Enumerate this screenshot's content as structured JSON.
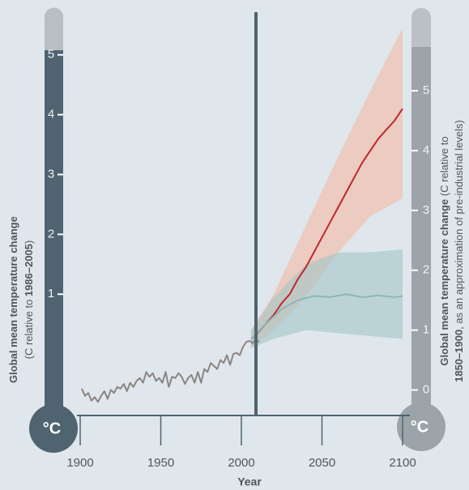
{
  "chart_data": {
    "type": "line",
    "xlabel": "Year",
    "bulb_label_left": "°C",
    "bulb_label_right": "°C",
    "y2label": {
      "bold": "Global mean temperature change",
      "pre": "(C relative to ",
      "period": "1986–2005",
      "post": ")"
    },
    "ylabel": {
      "bold": "Global mean temperature change",
      "rest": " (C relative to",
      "period": "1850–1900",
      "post": ", as an approximation of pre-industrial levels)"
    },
    "xlim": [
      1900,
      2100
    ],
    "xticks": [
      1900,
      1950,
      2000,
      2050,
      2100
    ],
    "ylim": [
      -0.4,
      6.3
    ],
    "yticks": [
      0,
      1,
      2,
      3,
      4,
      5
    ],
    "y2lim": [
      -1.0,
      5.7
    ],
    "y2ticks": [
      1,
      2,
      3,
      4,
      5
    ],
    "bands": [
      {
        "color": "#f5b9a1",
        "x": [
          2006,
          2020,
          2040,
          2060,
          2080,
          2100
        ],
        "upper": [
          1.0,
          1.6,
          2.75,
          3.9,
          5.0,
          6.05
        ],
        "lower": [
          0.7,
          1.0,
          1.55,
          2.3,
          2.9,
          3.2
        ]
      },
      {
        "color": "#a3c6c6",
        "x": [
          2006,
          2020,
          2040,
          2060,
          2080,
          2100
        ],
        "upper": [
          1.0,
          1.55,
          2.1,
          2.3,
          2.3,
          2.35
        ],
        "lower": [
          0.7,
          0.85,
          1.0,
          0.95,
          0.9,
          0.85
        ]
      }
    ],
    "series": [
      {
        "color": "#8a8580",
        "x": [
          1901,
          1903,
          1905,
          1907,
          1909,
          1911,
          1913,
          1915,
          1917,
          1919,
          1921,
          1923,
          1925,
          1927,
          1929,
          1931,
          1933,
          1935,
          1937,
          1939,
          1941,
          1943,
          1945,
          1947,
          1949,
          1951,
          1953,
          1955,
          1957,
          1959,
          1961,
          1963,
          1965,
          1967,
          1969,
          1971,
          1973,
          1975,
          1977,
          1979,
          1981,
          1983,
          1985,
          1987,
          1989,
          1991,
          1993,
          1995,
          1997,
          1999,
          2001,
          2003,
          2005,
          2007,
          2009,
          2011
        ],
        "values": [
          0.02,
          -0.1,
          -0.05,
          -0.18,
          -0.12,
          -0.2,
          -0.1,
          -0.02,
          -0.15,
          0.0,
          -0.05,
          0.05,
          0.02,
          0.1,
          -0.02,
          0.12,
          0.05,
          0.15,
          0.2,
          0.12,
          0.3,
          0.22,
          0.28,
          0.15,
          0.2,
          0.12,
          0.3,
          0.05,
          0.22,
          0.2,
          0.28,
          0.22,
          0.1,
          0.2,
          0.25,
          0.12,
          0.3,
          0.12,
          0.35,
          0.3,
          0.45,
          0.4,
          0.35,
          0.5,
          0.45,
          0.58,
          0.42,
          0.6,
          0.62,
          0.58,
          0.72,
          0.8,
          0.82,
          0.78,
          0.85,
          0.8
        ]
      },
      {
        "color": "#c0272d",
        "x": [
          2006,
          2010,
          2015,
          2020,
          2025,
          2030,
          2035,
          2040,
          2045,
          2050,
          2055,
          2060,
          2065,
          2070,
          2075,
          2080,
          2085,
          2090,
          2095,
          2100
        ],
        "values": [
          0.85,
          0.95,
          1.1,
          1.25,
          1.45,
          1.6,
          1.85,
          2.05,
          2.3,
          2.55,
          2.8,
          3.05,
          3.3,
          3.55,
          3.8,
          4.0,
          4.2,
          4.35,
          4.5,
          4.7
        ]
      },
      {
        "color": "#8db7b4",
        "x": [
          2006,
          2015,
          2025,
          2035,
          2045,
          2055,
          2065,
          2075,
          2085,
          2095,
          2100
        ],
        "values": [
          0.85,
          1.1,
          1.35,
          1.5,
          1.57,
          1.55,
          1.6,
          1.55,
          1.58,
          1.55,
          1.57
        ]
      }
    ]
  }
}
